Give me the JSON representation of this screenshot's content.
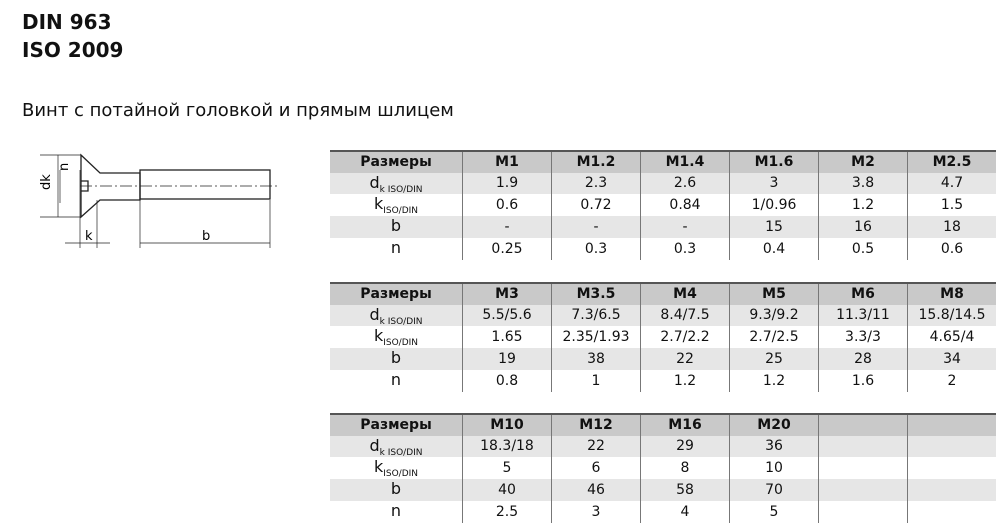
{
  "title_lines": [
    "DIN 963",
    "ISO 2009"
  ],
  "subtitle": "Винт с потайной головкой и прямым шлицем",
  "drawing_labels": {
    "dk": "dk",
    "n": "n",
    "k": "k",
    "b": "b"
  },
  "tables": [
    {
      "header": [
        "Размеры",
        "M1",
        "M1.2",
        "M1.4",
        "M1.6",
        "M2",
        "M2.5"
      ],
      "rows": [
        {
          "label": "d",
          "sub": "k ISO/DIN",
          "values": [
            "1.9",
            "2.3",
            "2.6",
            "3",
            "3.8",
            "4.7"
          ]
        },
        {
          "label": "k",
          "sub": "ISO/DIN",
          "values": [
            "0.6",
            "0.72",
            "0.84",
            "1/0.96",
            "1.2",
            "1.5"
          ]
        },
        {
          "label": "b",
          "sub": "",
          "values": [
            "-",
            "-",
            "-",
            "15",
            "16",
            "18"
          ]
        },
        {
          "label": "n",
          "sub": "",
          "values": [
            "0.25",
            "0.3",
            "0.3",
            "0.4",
            "0.5",
            "0.6"
          ]
        }
      ]
    },
    {
      "header": [
        "Размеры",
        "M3",
        "M3.5",
        "M4",
        "M5",
        "M6",
        "M8"
      ],
      "rows": [
        {
          "label": "d",
          "sub": "k ISO/DIN",
          "values": [
            "5.5/5.6",
            "7.3/6.5",
            "8.4/7.5",
            "9.3/9.2",
            "11.3/11",
            "15.8/14.5"
          ]
        },
        {
          "label": "k",
          "sub": "ISO/DIN",
          "values": [
            "1.65",
            "2.35/1.93",
            "2.7/2.2",
            "2.7/2.5",
            "3.3/3",
            "4.65/4"
          ]
        },
        {
          "label": "b",
          "sub": "",
          "values": [
            "19",
            "38",
            "22",
            "25",
            "28",
            "34"
          ]
        },
        {
          "label": "n",
          "sub": "",
          "values": [
            "0.8",
            "1",
            "1.2",
            "1.2",
            "1.6",
            "2"
          ]
        }
      ]
    },
    {
      "header": [
        "Размеры",
        "M10",
        "M12",
        "M16",
        "M20",
        "",
        ""
      ],
      "rows": [
        {
          "label": "d",
          "sub": "k ISO/DIN",
          "values": [
            "18.3/18",
            "22",
            "29",
            "36",
            "",
            ""
          ]
        },
        {
          "label": "k",
          "sub": "ISO/DIN",
          "values": [
            "5",
            "6",
            "8",
            "10",
            "",
            ""
          ]
        },
        {
          "label": "b",
          "sub": "",
          "values": [
            "40",
            "46",
            "58",
            "70",
            "",
            ""
          ]
        },
        {
          "label": "n",
          "sub": "",
          "values": [
            "2.5",
            "3",
            "4",
            "5",
            "",
            ""
          ]
        }
      ]
    }
  ]
}
